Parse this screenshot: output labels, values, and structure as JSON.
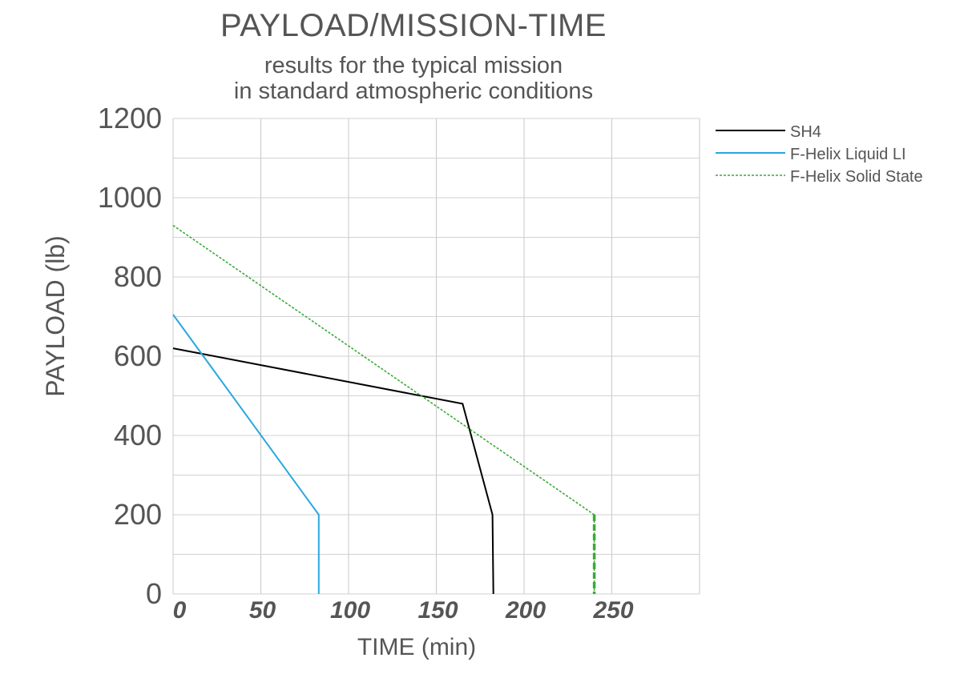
{
  "chart_data": {
    "type": "line",
    "title": "PAYLOAD/MISSION-TIME",
    "subtitle_lines": [
      "results for the typical mission",
      "in standard atmospheric conditions"
    ],
    "xlabel": "TIME (min)",
    "ylabel": "PAYLOAD (lb)",
    "xlim": [
      0,
      300
    ],
    "ylim": [
      0,
      1200
    ],
    "x_ticks": [
      "0",
      "50",
      "100",
      "150",
      "200",
      "250"
    ],
    "x_tick_values": [
      0,
      50,
      100,
      150,
      200,
      250
    ],
    "y_ticks": [
      "0",
      "200",
      "400",
      "600",
      "800",
      "1000",
      "1200"
    ],
    "y_tick_values": [
      0,
      200,
      400,
      600,
      800,
      1000,
      1200
    ],
    "grid": true,
    "legend_position": "top-right",
    "series": [
      {
        "name": "SH4",
        "color": "#000000",
        "dash": "solid",
        "x": [
          0,
          165,
          182,
          182.5
        ],
        "y": [
          620,
          480,
          200,
          0
        ]
      },
      {
        "name": "F-Helix Liquid LI",
        "color": "#29a8e0",
        "dash": "solid",
        "x": [
          0,
          83,
          83
        ],
        "y": [
          705,
          200,
          0
        ]
      },
      {
        "name": "F-Helix Solid State",
        "color": "#3aaa35",
        "dash": "dotted",
        "x": [
          0,
          240,
          240
        ],
        "y": [
          930,
          200,
          0
        ]
      }
    ]
  }
}
